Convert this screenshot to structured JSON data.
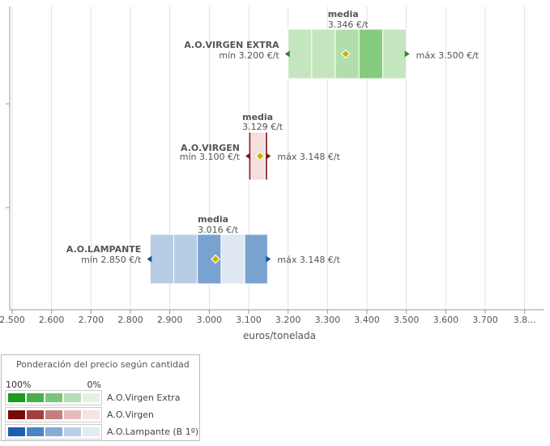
{
  "chart_data": {
    "type": "range-bar",
    "xlabel": "euros/tonelada",
    "xlim": [
      2500,
      3850
    ],
    "ticks": [
      "2.500",
      "2.600",
      "2.700",
      "2.800",
      "2.900",
      "3.000",
      "3.100",
      "3.200",
      "3.300",
      "3.400",
      "3.500",
      "3.600",
      "3.700",
      "3.8..."
    ],
    "tick_values": [
      2500,
      2600,
      2700,
      2800,
      2900,
      3000,
      3100,
      3200,
      3300,
      3400,
      3500,
      3600,
      3700,
      3800
    ],
    "grid": "vertical",
    "series": [
      {
        "name": "A.O.VIRGEN EXTRA",
        "min": 3200,
        "max": 3500,
        "mean": 3346,
        "min_label": "mín 3.200 €/t",
        "max_label": "máx 3.500 €/t",
        "mean_title": "media",
        "mean_label": "3.346 €/t",
        "segment_bounds": [
          3200,
          3260,
          3320,
          3380,
          3440,
          3500
        ],
        "segment_colors": [
          "#c4e6bf",
          "#c4e6bf",
          "#b1deab",
          "#84cc7c",
          "#c4e6bf"
        ],
        "marker_color": "#1e8c1e"
      },
      {
        "name": "A.O.VIRGEN",
        "min": 3100,
        "max": 3148,
        "mean": 3129,
        "min_label": "mín 3.100 €/t",
        "max_label": "máx 3.148 €/t",
        "mean_title": "media",
        "mean_label": "3.129 €/t",
        "segment_bounds": [
          3100,
          3106,
          3142,
          3148
        ],
        "segment_colors": [
          "#8b2e2e",
          "#f4dfdf",
          "#8b2e2e"
        ],
        "marker_color": "#7a1a1a"
      },
      {
        "name": "A.O.LAMPANTE",
        "min": 2850,
        "max": 3148,
        "mean": 3016,
        "min_label": "mín 2.850 €/t",
        "max_label": "máx 3.148 €/t",
        "mean_title": "media",
        "mean_label": "3.016 €/t",
        "segment_bounds": [
          2850,
          2910,
          2970,
          3030,
          3090,
          3148
        ],
        "segment_colors": [
          "#b7cde6",
          "#b7cde6",
          "#7aa2d0",
          "#dfe7f2",
          "#7aa2d0"
        ],
        "marker_color": "#1a4f96"
      }
    ],
    "mean_marker_color": "#c8b400",
    "legend": {
      "title": "Ponderación del precio según cantidad",
      "max_label": "100%",
      "min_label": "0%",
      "placement": "bottom-left",
      "rows": [
        {
          "name": "A.O.Virgen Extra",
          "swatches": [
            "#1d9a1d",
            "#4aaf4a",
            "#7cc47c",
            "#b7dfb7",
            "#e3f3e3"
          ]
        },
        {
          "name": "A.O.Virgen",
          "swatches": [
            "#7a0a0a",
            "#a24040",
            "#c47e7e",
            "#e4bcbc",
            "#f5e4e4"
          ]
        },
        {
          "name": "A.O.Lampante (B 1º)",
          "swatches": [
            "#1b5fae",
            "#4b84c4",
            "#86acd6",
            "#bad0e8",
            "#e1ebf5"
          ]
        }
      ]
    }
  }
}
